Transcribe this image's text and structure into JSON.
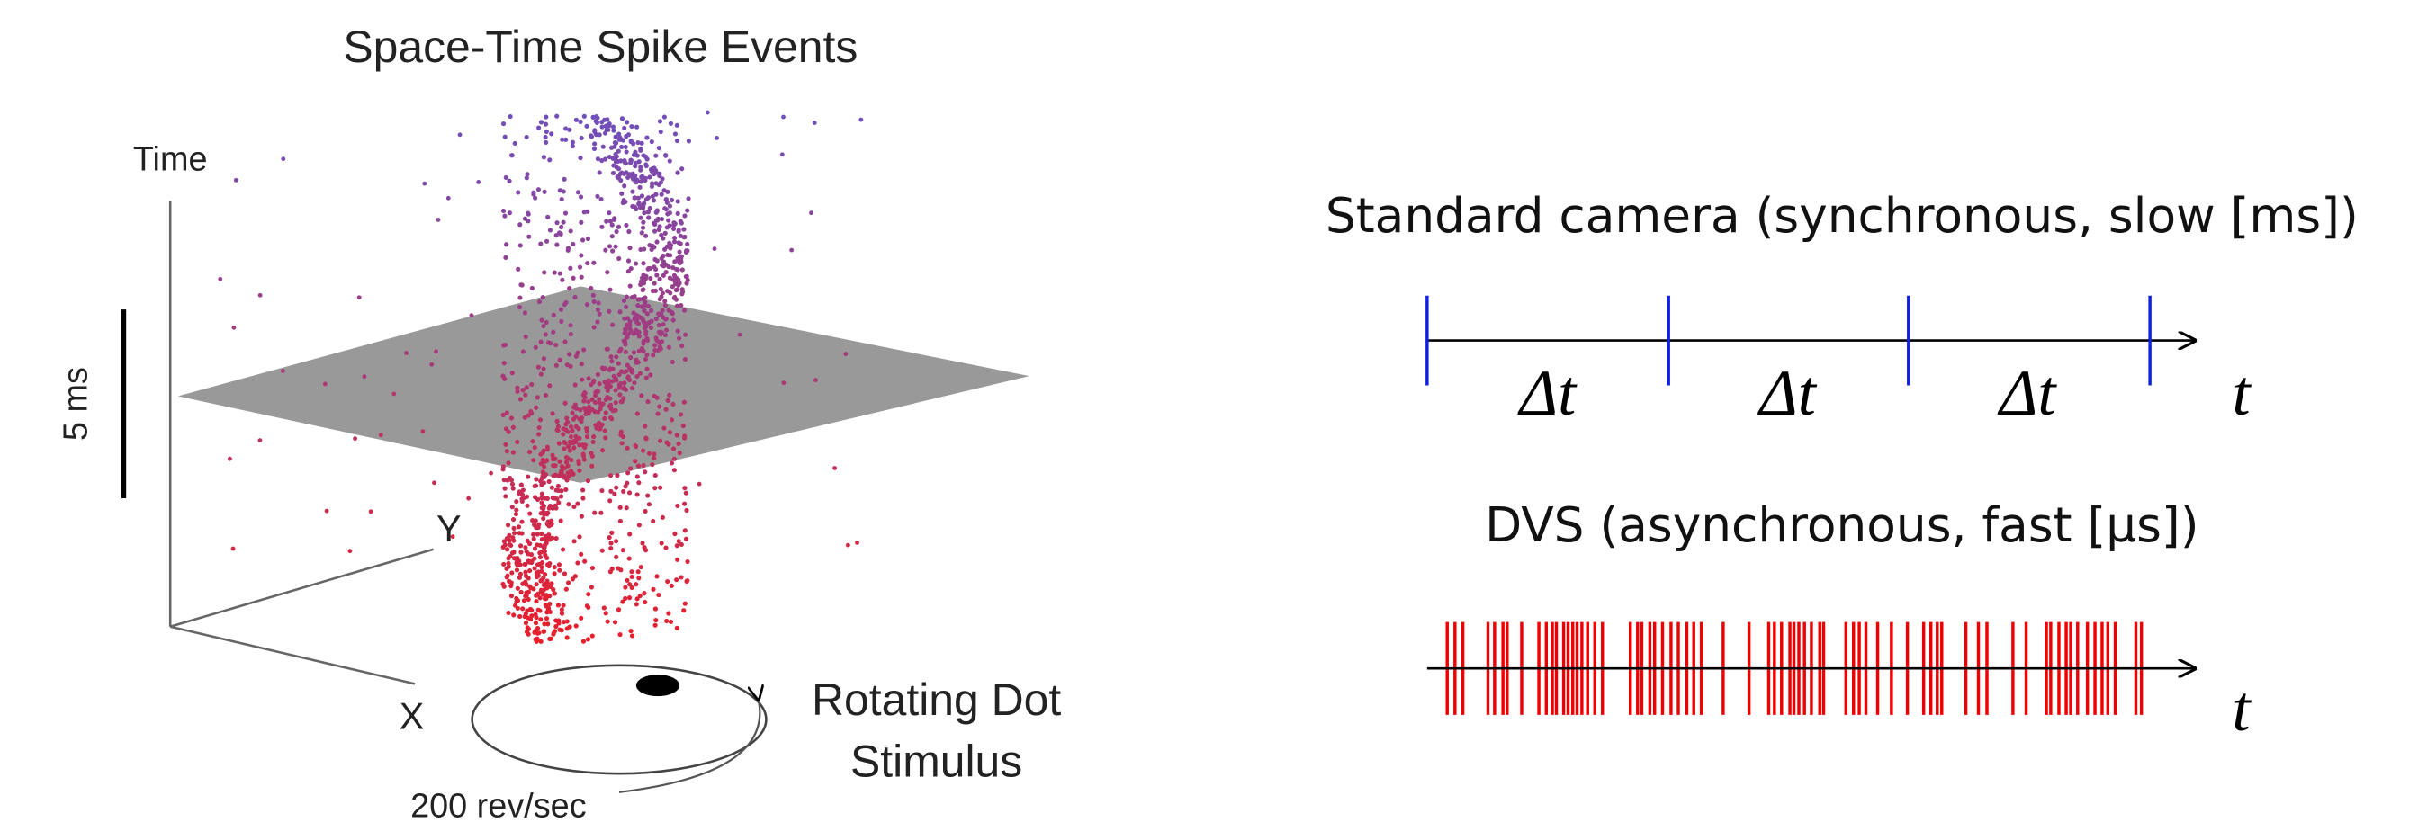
{
  "left_panel": {
    "title": "Space-Time Spike Events",
    "axis_labels": {
      "time": "Time",
      "scale": "5 ms",
      "y": "Y",
      "x": "X"
    },
    "stimulus": [
      "Rotating Dot",
      "Stimulus"
    ],
    "speed": "200 rev/sec"
  },
  "right_panel": {
    "standard": {
      "label": "Standard camera (synchronous, slow [ms])",
      "intervals": [
        "Δt",
        "Δt",
        "Δt"
      ],
      "axis": "t"
    },
    "dvs": {
      "label": "DVS (asynchronous, fast [µs])",
      "axis": "t"
    }
  }
}
